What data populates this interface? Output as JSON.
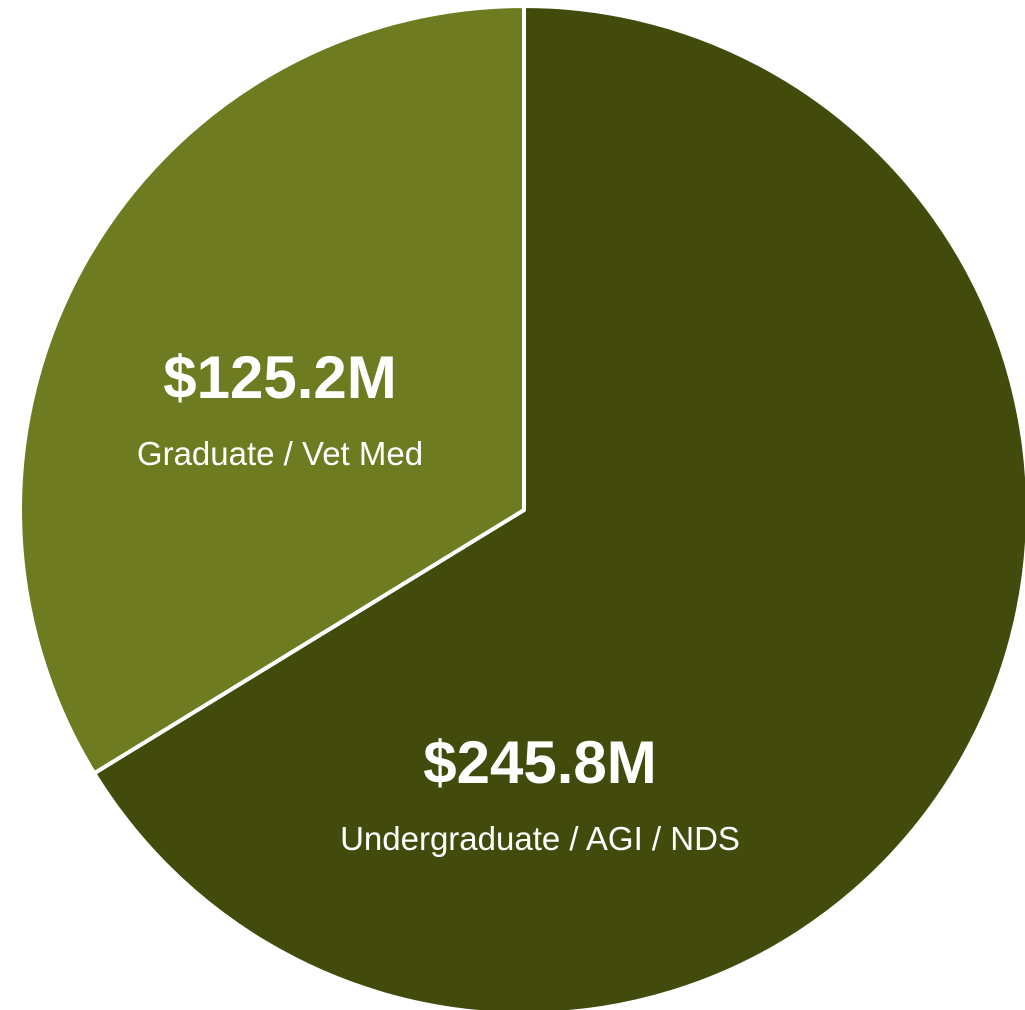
{
  "chart_data": {
    "type": "pie",
    "title": "",
    "start": "12 o'clock",
    "direction": "clockwise",
    "slices": [
      {
        "value_label": "$245.8M",
        "label": "Undergraduate / AGI / NDS",
        "value": 245.8,
        "color": "#424b0c"
      },
      {
        "value_label": "$125.2M",
        "label": "Graduate / Vet Med",
        "value": 125.2,
        "color": "#6e7b20"
      }
    ],
    "slice_border_color": "#ffffff",
    "legend": "none"
  }
}
